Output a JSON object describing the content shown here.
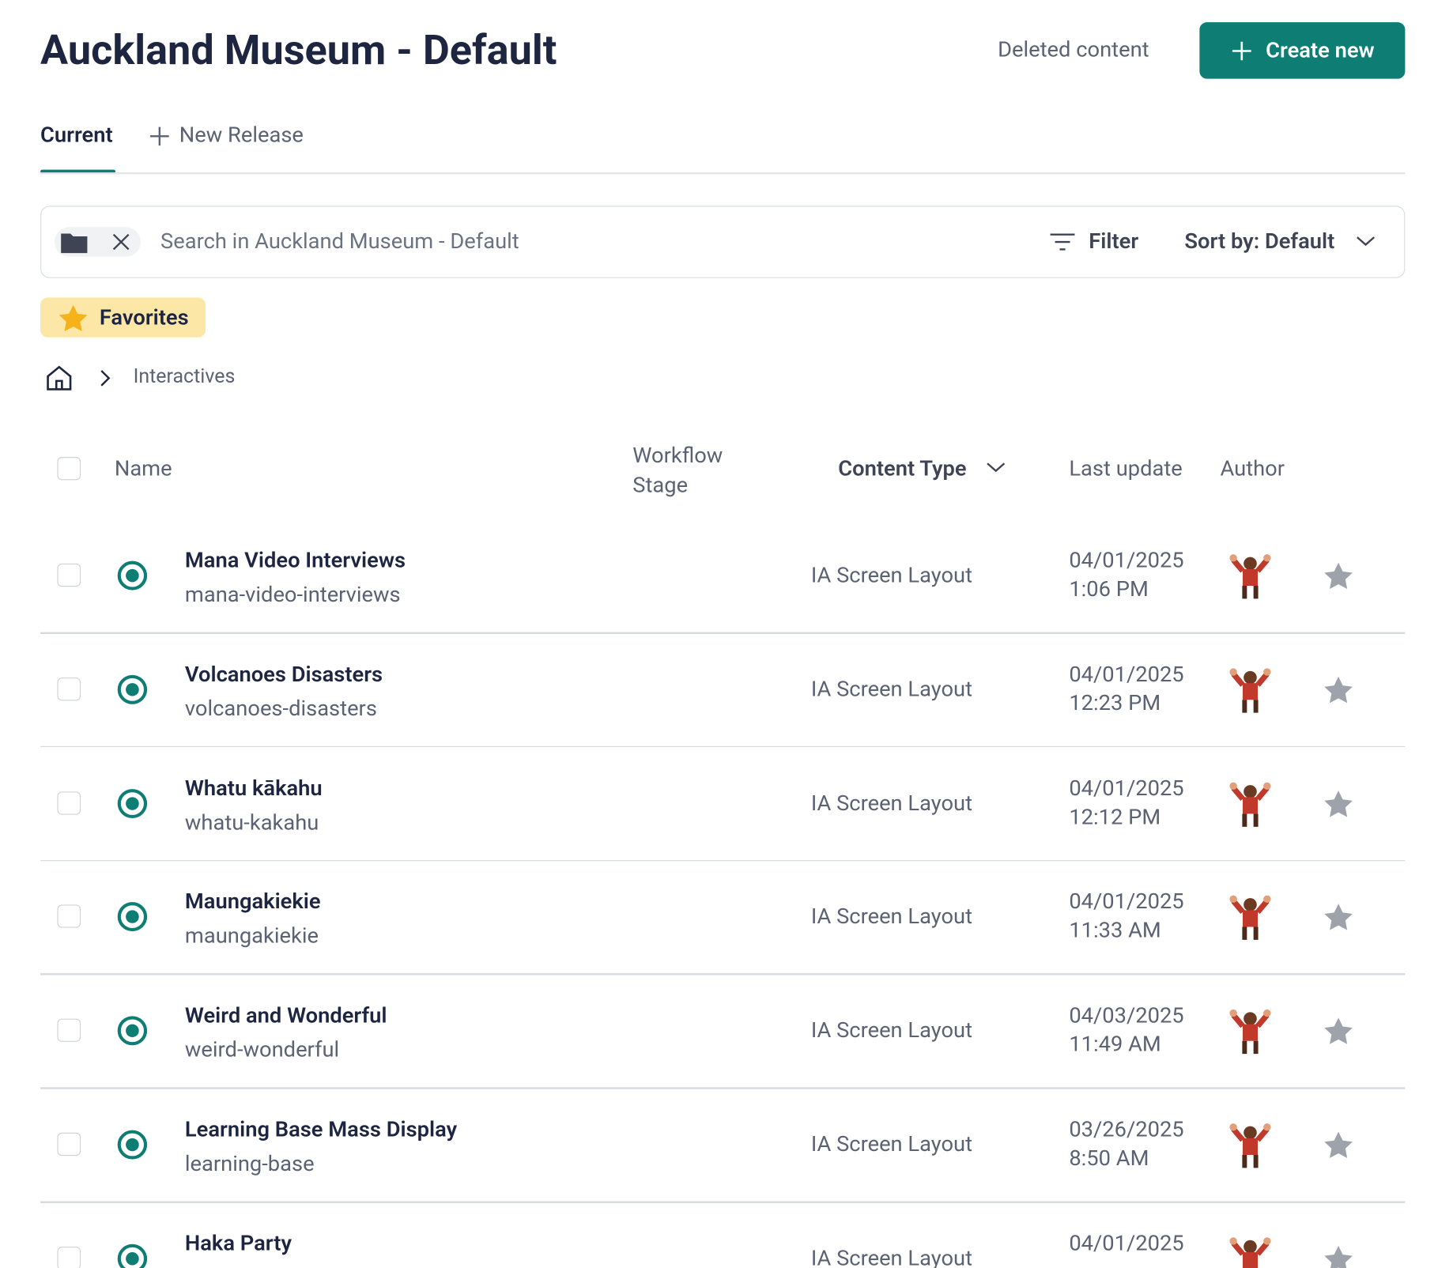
{
  "header": {
    "title": "Auckland Museum - Default",
    "deleted_link": "Deleted content",
    "create_button": "Create new"
  },
  "tabs": {
    "current": "Current",
    "new_release": "New Release"
  },
  "search": {
    "placeholder": "Search in Auckland Museum - Default",
    "filter": "Filter",
    "sort": "Sort by: Default"
  },
  "favorites": "Favorites",
  "breadcrumb": {
    "current": "Interactives"
  },
  "table": {
    "columns": {
      "name": "Name",
      "workflow": "Workflow Stage",
      "content_type": "Content Type",
      "last_update": "Last update",
      "author": "Author"
    },
    "rows": [
      {
        "name": "Mana Video Interviews",
        "slug": "mana-video-interviews",
        "type": "IA Screen Layout",
        "date": "04/01/2025",
        "time": "1:06 PM"
      },
      {
        "name": "Volcanoes Disasters",
        "slug": "volcanoes-disasters",
        "type": "IA Screen Layout",
        "date": "04/01/2025",
        "time": "12:23 PM"
      },
      {
        "name": "Whatu kākahu",
        "slug": "whatu-kakahu",
        "type": "IA Screen Layout",
        "date": "04/01/2025",
        "time": "12:12 PM"
      },
      {
        "name": "Maungakiekie",
        "slug": "maungakiekie",
        "type": "IA Screen Layout",
        "date": "04/01/2025",
        "time": "11:33 AM"
      },
      {
        "name": "Weird and Wonderful",
        "slug": "weird-wonderful",
        "type": "IA Screen Layout",
        "date": "04/03/2025",
        "time": "11:49 AM"
      },
      {
        "name": "Learning Base Mass Display",
        "slug": "learning-base",
        "type": "IA Screen Layout",
        "date": "03/26/2025",
        "time": "8:50 AM"
      },
      {
        "name": "Haka Party",
        "type": "IA Screen Layout",
        "date": "04/01/2025"
      }
    ]
  }
}
